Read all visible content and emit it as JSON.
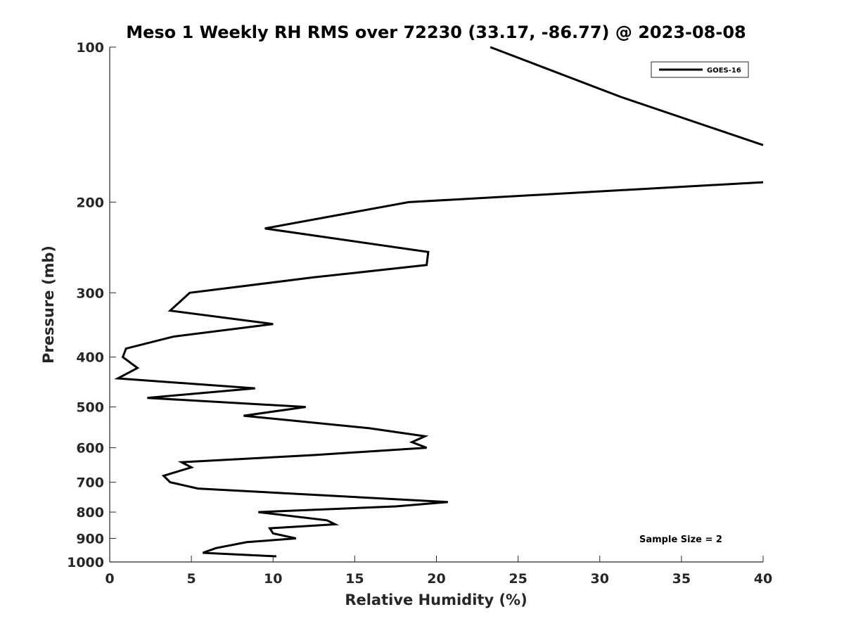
{
  "chart_data": {
    "type": "line",
    "title": "Meso 1 Weekly RH RMS over 72230 (33.17, -86.77) @ 2023-08-08",
    "xlabel": "Relative Humidity (%)",
    "ylabel": "Pressure (mb)",
    "xlim": [
      0,
      40
    ],
    "ylim": [
      100,
      1000
    ],
    "y_scale": "log",
    "y_reversed": true,
    "x_ticks": [
      0,
      5,
      10,
      15,
      20,
      25,
      30,
      35,
      40
    ],
    "y_ticks": [
      100,
      200,
      300,
      400,
      500,
      600,
      700,
      800,
      900,
      1000
    ],
    "grid": false,
    "legend_position": "top-right",
    "annotation": "Sample Size = 2",
    "series": [
      {
        "name": "GOES-16",
        "color": "#000000",
        "segments": [
          [
            {
              "x": 23.3,
              "p": 100
            },
            {
              "x": 31.3,
              "p": 125
            },
            {
              "x": 40.0,
              "p": 155
            }
          ],
          [
            {
              "x": 40.0,
              "p": 183
            },
            {
              "x": 18.3,
              "p": 200
            },
            {
              "x": 9.5,
              "p": 225
            },
            {
              "x": 19.5,
              "p": 250
            },
            {
              "x": 19.4,
              "p": 265
            },
            {
              "x": 12.5,
              "p": 280
            },
            {
              "x": 4.9,
              "p": 300
            },
            {
              "x": 3.7,
              "p": 325
            },
            {
              "x": 10.0,
              "p": 345
            },
            {
              "x": 3.9,
              "p": 365
            },
            {
              "x": 1.0,
              "p": 385
            },
            {
              "x": 0.8,
              "p": 400
            },
            {
              "x": 1.7,
              "p": 420
            },
            {
              "x": 0.5,
              "p": 440
            },
            {
              "x": 8.9,
              "p": 460
            },
            {
              "x": 2.3,
              "p": 480
            },
            {
              "x": 12.0,
              "p": 500
            },
            {
              "x": 8.2,
              "p": 520
            },
            {
              "x": 15.9,
              "p": 550
            },
            {
              "x": 19.3,
              "p": 570
            },
            {
              "x": 18.5,
              "p": 585
            },
            {
              "x": 19.4,
              "p": 600
            },
            {
              "x": 12.5,
              "p": 620
            },
            {
              "x": 4.4,
              "p": 640
            },
            {
              "x": 5.0,
              "p": 655
            },
            {
              "x": 3.3,
              "p": 680
            },
            {
              "x": 3.7,
              "p": 700
            },
            {
              "x": 5.4,
              "p": 720
            },
            {
              "x": 20.7,
              "p": 765
            },
            {
              "x": 17.5,
              "p": 780
            },
            {
              "x": 9.1,
              "p": 800
            },
            {
              "x": 13.3,
              "p": 830
            },
            {
              "x": 13.8,
              "p": 845
            },
            {
              "x": 9.8,
              "p": 860
            },
            {
              "x": 10.0,
              "p": 880
            },
            {
              "x": 11.4,
              "p": 900
            },
            {
              "x": 8.4,
              "p": 915
            },
            {
              "x": 6.5,
              "p": 940
            },
            {
              "x": 5.7,
              "p": 960
            },
            {
              "x": 10.2,
              "p": 975
            }
          ]
        ]
      }
    ]
  }
}
